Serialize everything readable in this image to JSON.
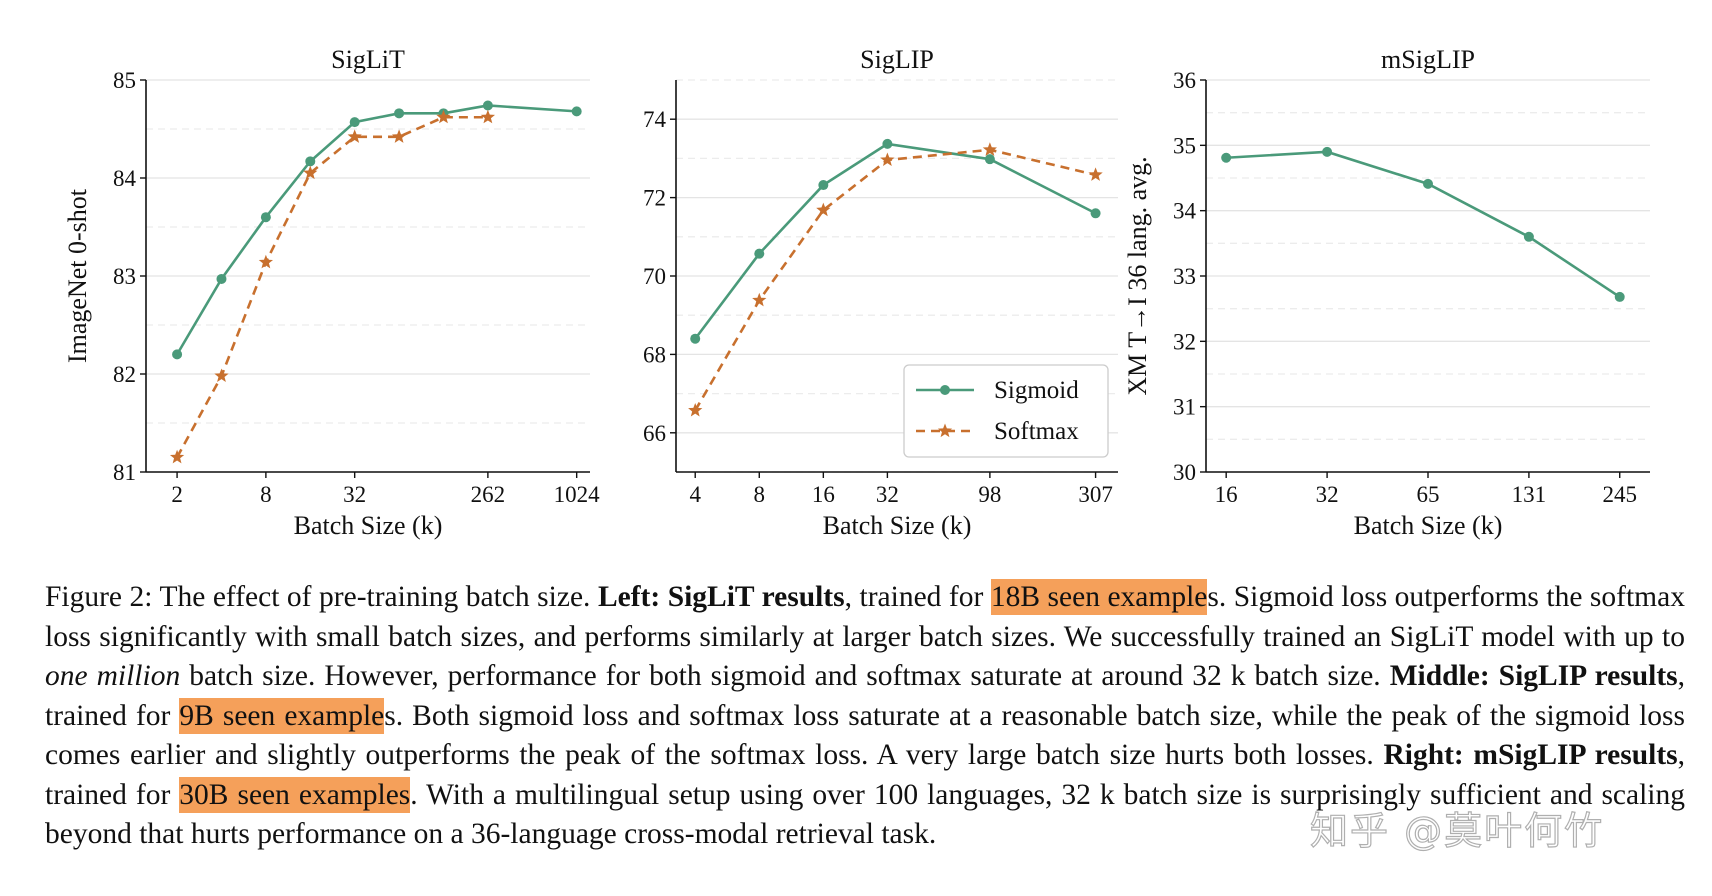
{
  "chart_data": [
    {
      "type": "line",
      "title": "SigLiT",
      "xlabel": "Batch Size (k)",
      "ylabel": "ImageNet 0-shot",
      "ylim": [
        81,
        85
      ],
      "yticks": [
        "81",
        "82",
        "83",
        "84",
        "85"
      ],
      "xticks": [
        {
          "label": "2",
          "pos": 0
        },
        {
          "label": "8",
          "pos": 2
        },
        {
          "label": "32",
          "pos": 4
        },
        {
          "label": "262",
          "pos": 7
        },
        {
          "label": "1024",
          "pos": 9
        }
      ],
      "xrange": [
        -0.7,
        9.3
      ],
      "grid": "horizontal-minor",
      "series": [
        {
          "name": "Sigmoid",
          "color": "#4a9a7a",
          "dash": false,
          "marker": "circle",
          "x": [
            0,
            1,
            2,
            3,
            4,
            5,
            6,
            7,
            9
          ],
          "y": [
            82.2,
            82.97,
            83.6,
            84.17,
            84.57,
            84.66,
            84.66,
            84.74,
            84.68
          ]
        },
        {
          "name": "Softmax",
          "color": "#c8702e",
          "dash": true,
          "marker": "star",
          "x": [
            0,
            1,
            2,
            3,
            4,
            5,
            6,
            7
          ],
          "y": [
            81.15,
            81.98,
            83.14,
            84.05,
            84.42,
            84.42,
            84.62,
            84.62
          ]
        }
      ]
    },
    {
      "type": "line",
      "title": "SigLIP",
      "xlabel": "Batch Size (k)",
      "ylabel": "",
      "ylim": [
        65,
        75
      ],
      "yticks": [
        "66",
        "68",
        "70",
        "72",
        "74"
      ],
      "ytick_values": [
        66,
        68,
        70,
        72,
        74
      ],
      "xticks": [
        {
          "label": "4",
          "pos": 0
        },
        {
          "label": "8",
          "pos": 1
        },
        {
          "label": "16",
          "pos": 2
        },
        {
          "label": "32",
          "pos": 3
        },
        {
          "label": "98",
          "pos": 4.6
        },
        {
          "label": "307",
          "pos": 6.25
        }
      ],
      "xrange": [
        -0.3,
        6.6
      ],
      "grid": "horizontal-minor",
      "legend": "lower-right",
      "legend_entries": [
        "Sigmoid",
        "Softmax"
      ],
      "series": [
        {
          "name": "Sigmoid",
          "color": "#4a9a7a",
          "dash": false,
          "marker": "circle",
          "x": [
            0,
            1,
            2,
            3,
            4.6,
            6.25
          ],
          "y": [
            68.4,
            70.57,
            72.32,
            73.37,
            72.98,
            71.6
          ]
        },
        {
          "name": "Softmax",
          "color": "#c8702e",
          "dash": true,
          "marker": "star",
          "x": [
            0,
            1,
            2,
            3,
            4.6,
            6.25
          ],
          "y": [
            66.57,
            69.38,
            71.68,
            72.96,
            73.22,
            72.58
          ]
        }
      ]
    },
    {
      "type": "line",
      "title": "mSigLIP",
      "xlabel": "Batch Size (k)",
      "ylabel": "XM T→I 36 lang. avg.",
      "ylim": [
        30,
        36
      ],
      "yticks": [
        "30",
        "31",
        "32",
        "33",
        "34",
        "35",
        "36"
      ],
      "xticks": [
        {
          "label": "16",
          "pos": 0
        },
        {
          "label": "32",
          "pos": 1
        },
        {
          "label": "65",
          "pos": 2
        },
        {
          "label": "131",
          "pos": 3
        },
        {
          "label": "245",
          "pos": 3.9
        }
      ],
      "xrange": [
        -0.2,
        4.2
      ],
      "grid": "horizontal-minor",
      "series": [
        {
          "name": "Sigmoid",
          "color": "#4a9a7a",
          "dash": false,
          "marker": "circle",
          "x": [
            0,
            1,
            2,
            3,
            3.9
          ],
          "y": [
            34.81,
            34.9,
            34.41,
            33.6,
            32.68
          ]
        }
      ]
    }
  ],
  "caption": {
    "fig_label": "Figure 2: The effect of pre-training batch size.",
    "left_label": "Left: SigLiT results",
    "t1": ", trained for",
    "hl1": "18B seen example",
    "t2": "s. Sigmoid loss outperforms the softmax loss significantly with small batch sizes, and performs similarly at larger batch sizes. We successfully trained an SigLiT model with up to",
    "italic": "one million",
    "t3": "batch size. However, performance for both sigmoid and softmax saturate at around 32 k batch size.",
    "middle_label": "Middle: SigLIP results",
    "t4": ", trained for",
    "hl2": "9B seen example",
    "t5": "s. Both sigmoid loss and softmax loss saturate at a reasonable batch size, while the peak of the sigmoid loss comes earlier and slightly outperforms the peak of the softmax loss. A very large batch size hurts both losses.",
    "right_label": "Right: mSigLIP results",
    "t6": ", trained for",
    "hl3": "30B seen examples",
    "t7": ". With a multilingual setup using over 100 languages, 32 k batch size is surprisingly sufficient and scaling beyond that hurts performance on a 36-language cross-modal retrieval task."
  },
  "watermark": "知乎 @莫叶何竹",
  "colors": {
    "highlight": "#f5a05a",
    "sigmoid": "#4a9a7a",
    "softmax": "#c8702e"
  }
}
